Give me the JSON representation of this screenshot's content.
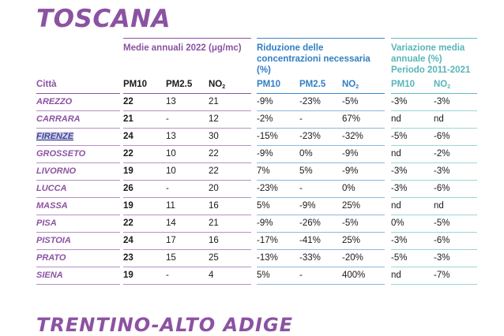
{
  "title": "TOSCANA",
  "groups": {
    "annual": "Medie annuali 2022 (μg/mc)",
    "reduction": "Riduzione delle concentrazioni necessaria (%)",
    "variation": "Variazione media annuale (%) Periodo 2011-2021"
  },
  "headers": {
    "city": "Città",
    "pm10": "PM10",
    "pm25": "PM2.5",
    "no2": "NO",
    "no2_sub": "2"
  },
  "rows": [
    {
      "city": "AREZZO",
      "pm10": "22",
      "pm25": "13",
      "no2": "21",
      "r_pm10": "-9%",
      "r_pm25": "-23%",
      "r_no2": "-5%",
      "v_pm10": "-3%",
      "v_no2": "-3%"
    },
    {
      "city": "CARRARA",
      "pm10": "21",
      "pm25": "-",
      "no2": "12",
      "r_pm10": "-2%",
      "r_pm25": "-",
      "r_no2": "67%",
      "v_pm10": "nd",
      "v_no2": "nd"
    },
    {
      "city": "FIRENZE",
      "pm10": "24",
      "pm25": "13",
      "no2": "30",
      "r_pm10": "-15%",
      "r_pm25": "-23%",
      "r_no2": "-32%",
      "v_pm10": "-5%",
      "v_no2": "-6%"
    },
    {
      "city": "GROSSETO",
      "pm10": "22",
      "pm25": "10",
      "no2": "22",
      "r_pm10": "-9%",
      "r_pm25": "0%",
      "r_no2": "-9%",
      "v_pm10": "nd",
      "v_no2": "-2%"
    },
    {
      "city": "LIVORNO",
      "pm10": "19",
      "pm25": "10",
      "no2": "22",
      "r_pm10": "7%",
      "r_pm25": "5%",
      "r_no2": "-9%",
      "v_pm10": "-3%",
      "v_no2": "-3%"
    },
    {
      "city": "LUCCA",
      "pm10": "26",
      "pm25": "-",
      "no2": "20",
      "r_pm10": "-23%",
      "r_pm25": "-",
      "r_no2": "0%",
      "v_pm10": "-3%",
      "v_no2": "-6%"
    },
    {
      "city": "MASSA",
      "pm10": "19",
      "pm25": "11",
      "no2": "16",
      "r_pm10": "5%",
      "r_pm25": "-9%",
      "r_no2": "25%",
      "v_pm10": "nd",
      "v_no2": "nd"
    },
    {
      "city": "PISA",
      "pm10": "22",
      "pm25": "14",
      "no2": "21",
      "r_pm10": "-9%",
      "r_pm25": "-26%",
      "r_no2": "-5%",
      "v_pm10": "0%",
      "v_no2": "-5%"
    },
    {
      "city": "PISTOIA",
      "pm10": "24",
      "pm25": "17",
      "no2": "16",
      "r_pm10": "-17%",
      "r_pm25": "-41%",
      "r_no2": "25%",
      "v_pm10": "-3%",
      "v_no2": "-6%"
    },
    {
      "city": "PRATO",
      "pm10": "23",
      "pm25": "15",
      "no2": "25",
      "r_pm10": "-13%",
      "r_pm25": "-33%",
      "r_no2": "-20%",
      "v_pm10": "-5%",
      "v_no2": "-3%"
    },
    {
      "city": "SIENA",
      "pm10": "19",
      "pm25": "-",
      "no2": "4",
      "r_pm10": "5%",
      "r_pm25": "-",
      "r_no2": "400%",
      "v_pm10": "nd",
      "v_no2": "-7%"
    }
  ],
  "selected_city": "FIRENZE",
  "next_section_title": "TRENTINO-ALTO ADIGE",
  "colors": {
    "purple": "#8c52a2",
    "blue": "#2f7fc4",
    "teal": "#58b5b8",
    "selection": "#d2d6ea"
  }
}
